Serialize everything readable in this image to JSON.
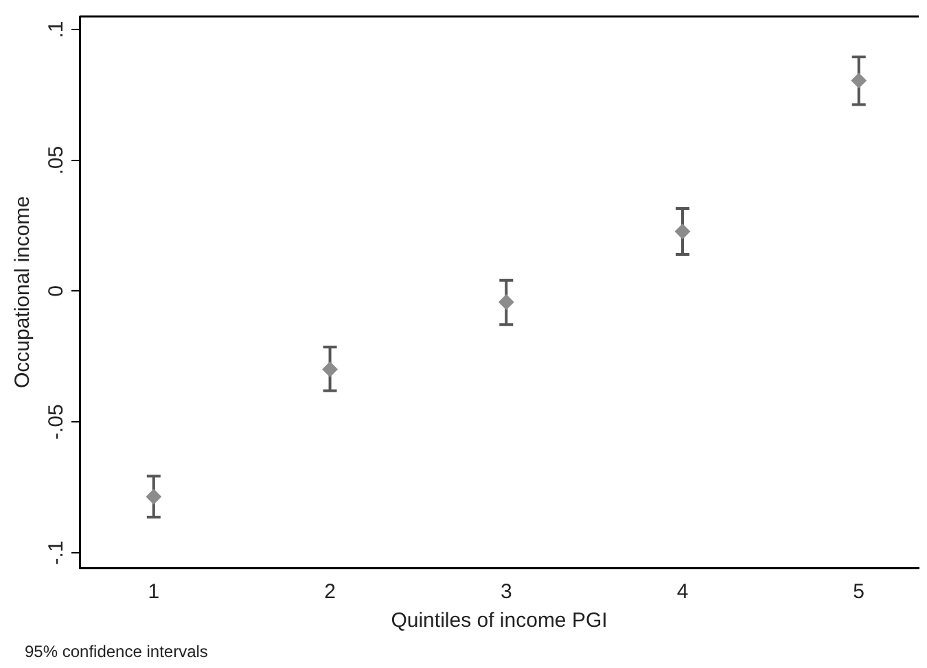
{
  "chart_data": {
    "type": "scatter",
    "xlabel": "Quintiles of income PGI",
    "ylabel": "Occupational income",
    "annotations": [
      "95% confidence intervals"
    ],
    "x": [
      1,
      2,
      3,
      4,
      5
    ],
    "series": [
      {
        "color": "#8c8c8c",
        "values": [
          -0.0786,
          -0.0299,
          -0.0042,
          0.0228,
          0.0805
        ],
        "errors": [
          [
            -0.0864,
            -0.0707
          ],
          [
            -0.0381,
            -0.0214
          ],
          [
            -0.0128,
            0.0041
          ],
          [
            0.014,
            0.0316
          ],
          [
            0.0713,
            0.0895
          ]
        ]
      }
    ],
    "xlim": [
      0.58,
      5.34
    ],
    "xticks": [
      1,
      2,
      3,
      4,
      5
    ],
    "ylim": [
      -0.1058,
      0.105
    ],
    "yticks": [
      {
        "value": -0.1,
        "label": "-.1"
      },
      {
        "value": -0.05,
        "label": "-.05"
      },
      {
        "value": 0,
        "label": "0"
      },
      {
        "value": 0.05,
        "label": ".05"
      },
      {
        "value": 0.1,
        "label": ".1"
      }
    ],
    "grid": false,
    "legend": false,
    "marker": "diamond"
  }
}
